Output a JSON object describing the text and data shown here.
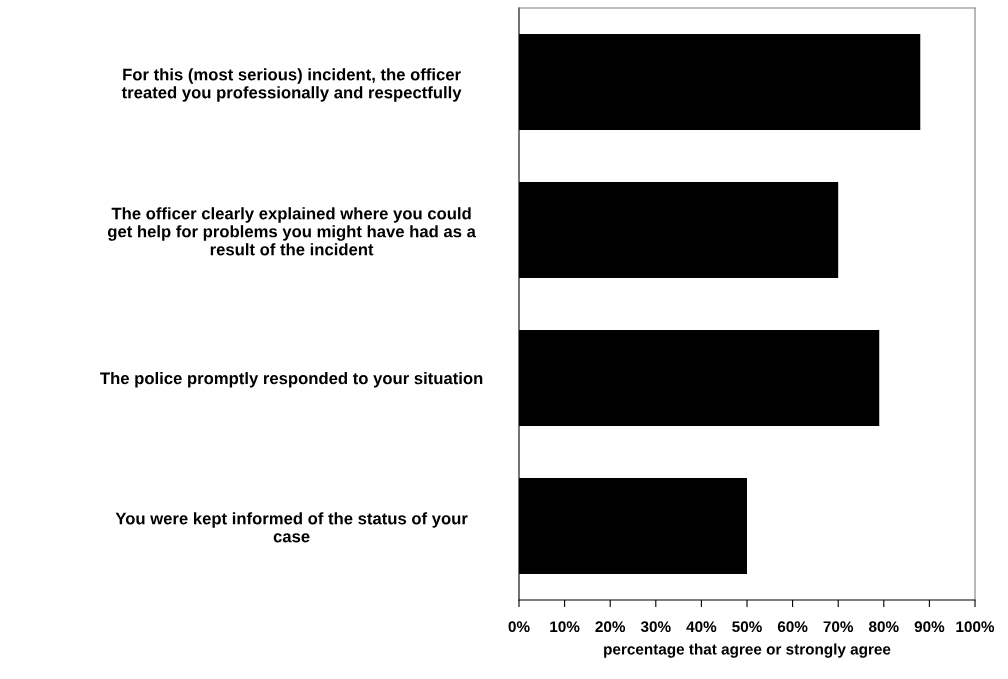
{
  "chart_data": {
    "type": "bar",
    "orientation": "horizontal",
    "categories": [
      "For this (most serious) incident, the officer\ntreated you professionally and respectfully",
      "The officer clearly explained where you could\nget help for problems you might have had as a\nresult of the incident",
      "The police promptly responded to your situation",
      "You were kept informed of the status of your\ncase"
    ],
    "values": [
      88,
      70,
      79,
      50
    ],
    "color": "#000000",
    "xlabel": "percentage that agree or strongly agree",
    "xlim": [
      0,
      100
    ],
    "xticks": [
      {
        "value": 0,
        "label": "0%"
      },
      {
        "value": 10,
        "label": "10%"
      },
      {
        "value": 20,
        "label": "20%"
      },
      {
        "value": 30,
        "label": "30%"
      },
      {
        "value": 40,
        "label": "40%"
      },
      {
        "value": 50,
        "label": "50%"
      },
      {
        "value": 60,
        "label": "60%"
      },
      {
        "value": 70,
        "label": "70%"
      },
      {
        "value": 80,
        "label": "80%"
      },
      {
        "value": 90,
        "label": "90%"
      },
      {
        "value": 100,
        "label": "100%"
      }
    ],
    "grid": false,
    "legend": false
  }
}
